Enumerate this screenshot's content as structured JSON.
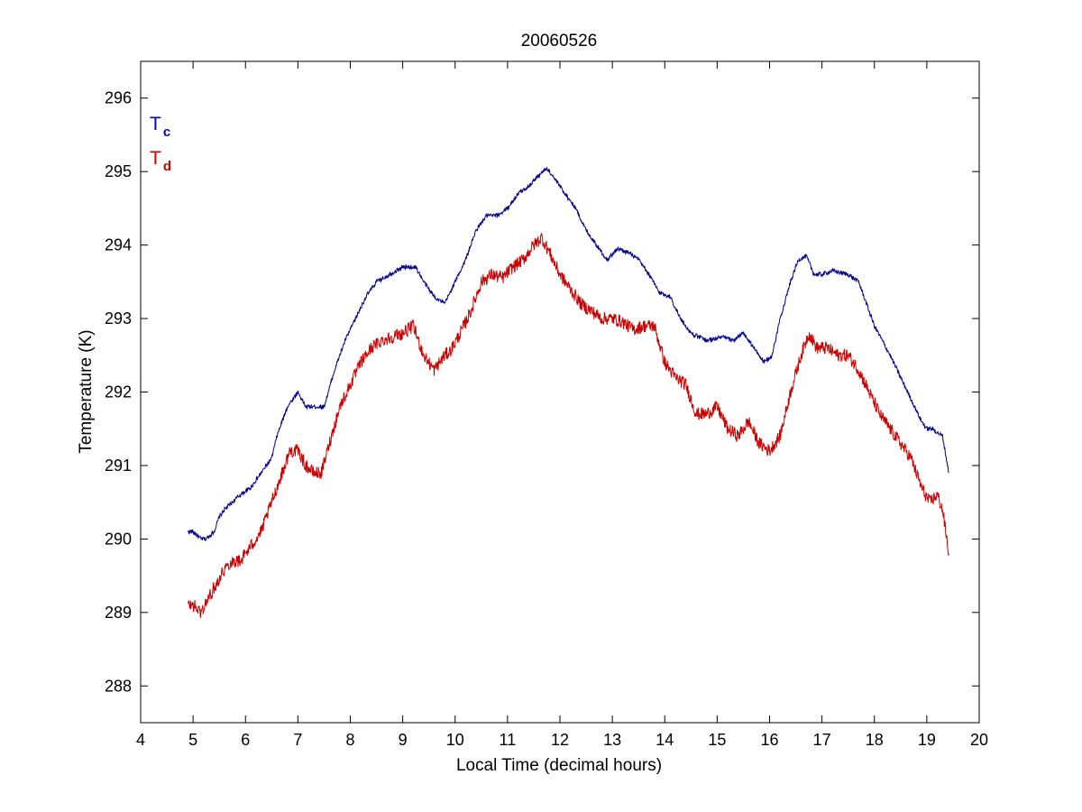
{
  "chart_data": {
    "type": "line",
    "title": "20060526",
    "xlabel": "Local Time (decimal hours)",
    "ylabel": "Temperature (K)",
    "xlim": [
      4,
      20
    ],
    "ylim": [
      287.5,
      296.5
    ],
    "xticks": [
      4,
      5,
      6,
      7,
      8,
      9,
      10,
      11,
      12,
      13,
      14,
      15,
      16,
      17,
      18,
      19,
      20
    ],
    "yticks": [
      288,
      289,
      290,
      291,
      292,
      293,
      294,
      295,
      296
    ],
    "grid": false,
    "legend": {
      "placement": "top-left",
      "entries": [
        {
          "main": "T",
          "sub": "c",
          "color": "#0000cc"
        },
        {
          "main": "T",
          "sub": "d",
          "color": "#cc0000"
        }
      ]
    },
    "series": [
      {
        "color": "#00008b",
        "noise": 0.03,
        "x": [
          4.9,
          5.0,
          5.15,
          5.25,
          5.4,
          5.5,
          5.6,
          5.75,
          5.9,
          6.1,
          6.3,
          6.5,
          6.6,
          6.8,
          7.0,
          7.15,
          7.3,
          7.5,
          7.7,
          7.9,
          8.1,
          8.3,
          8.5,
          8.75,
          9.0,
          9.25,
          9.4,
          9.6,
          9.8,
          10.0,
          10.2,
          10.4,
          10.6,
          10.8,
          11.0,
          11.2,
          11.4,
          11.6,
          11.75,
          11.9,
          12.1,
          12.3,
          12.5,
          12.7,
          12.9,
          13.1,
          13.3,
          13.5,
          13.7,
          13.9,
          14.1,
          14.3,
          14.5,
          14.8,
          15.1,
          15.3,
          15.5,
          15.7,
          15.9,
          16.05,
          16.2,
          16.4,
          16.55,
          16.7,
          16.85,
          17.0,
          17.2,
          17.5,
          17.7,
          17.85,
          18.0,
          18.3,
          18.5,
          18.7,
          18.9,
          19.0,
          19.1,
          19.3,
          19.42
        ],
        "y": [
          290.1,
          290.1,
          290.0,
          290.0,
          290.1,
          290.3,
          290.4,
          290.5,
          290.6,
          290.7,
          290.9,
          291.1,
          291.4,
          291.8,
          292.0,
          291.8,
          291.8,
          291.8,
          292.3,
          292.7,
          293.0,
          293.3,
          293.5,
          293.6,
          293.7,
          293.7,
          293.5,
          293.3,
          293.2,
          293.5,
          293.8,
          294.2,
          294.4,
          294.4,
          294.5,
          294.7,
          294.8,
          294.95,
          295.05,
          294.9,
          294.7,
          294.5,
          294.2,
          294.0,
          293.8,
          293.95,
          293.9,
          293.8,
          293.6,
          293.35,
          293.3,
          293.0,
          292.8,
          292.7,
          292.75,
          292.7,
          292.8,
          292.6,
          292.4,
          292.5,
          293.0,
          293.5,
          293.8,
          293.85,
          293.6,
          293.6,
          293.65,
          293.6,
          293.5,
          293.2,
          292.9,
          292.5,
          292.2,
          291.9,
          291.6,
          291.5,
          291.5,
          291.4,
          290.9
        ]
      },
      {
        "color": "#cc0000",
        "noise": 0.09,
        "x": [
          4.9,
          5.0,
          5.15,
          5.3,
          5.45,
          5.6,
          5.75,
          5.9,
          6.1,
          6.3,
          6.5,
          6.7,
          6.85,
          7.0,
          7.15,
          7.3,
          7.45,
          7.6,
          7.8,
          8.0,
          8.2,
          8.4,
          8.6,
          8.8,
          9.0,
          9.2,
          9.4,
          9.6,
          9.8,
          9.9,
          10.1,
          10.3,
          10.5,
          10.7,
          10.9,
          11.1,
          11.3,
          11.5,
          11.65,
          11.8,
          12.0,
          12.2,
          12.4,
          12.6,
          12.8,
          13.0,
          13.2,
          13.4,
          13.6,
          13.8,
          14.0,
          14.2,
          14.4,
          14.6,
          14.8,
          15.0,
          15.2,
          15.4,
          15.6,
          15.8,
          16.0,
          16.2,
          16.4,
          16.6,
          16.75,
          16.9,
          17.1,
          17.3,
          17.5,
          17.7,
          17.9,
          18.1,
          18.3,
          18.5,
          18.7,
          18.9,
          19.05,
          19.2,
          19.3,
          19.42
        ],
        "y": [
          289.1,
          289.1,
          289.0,
          289.2,
          289.4,
          289.6,
          289.7,
          289.7,
          289.9,
          290.1,
          290.5,
          290.9,
          291.2,
          291.2,
          291.0,
          290.9,
          290.9,
          291.3,
          291.8,
          292.1,
          292.4,
          292.6,
          292.7,
          292.75,
          292.8,
          292.9,
          292.5,
          292.3,
          292.5,
          292.55,
          292.8,
          293.1,
          293.5,
          293.6,
          293.55,
          293.7,
          293.8,
          294.0,
          294.1,
          293.9,
          293.6,
          293.4,
          293.2,
          293.1,
          293.0,
          293.0,
          292.95,
          292.85,
          292.9,
          292.9,
          292.4,
          292.2,
          292.1,
          291.7,
          291.7,
          291.8,
          291.5,
          291.4,
          291.6,
          291.3,
          291.2,
          291.4,
          292.0,
          292.5,
          292.8,
          292.6,
          292.6,
          292.5,
          292.5,
          292.3,
          292.0,
          291.7,
          291.5,
          291.3,
          291.1,
          290.7,
          290.5,
          290.6,
          290.4,
          289.8
        ]
      }
    ]
  }
}
